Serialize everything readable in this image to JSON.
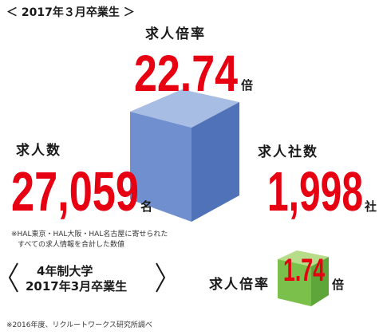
{
  "header": {
    "title": "＜ 2017年３月卒業生 ＞"
  },
  "main": {
    "ratio": {
      "label": "求人倍率",
      "value": "22.74",
      "unit": "倍"
    },
    "applicants": {
      "label": "求人数",
      "value": "27,059",
      "unit": "名"
    },
    "companies": {
      "label": "求人社数",
      "value": "1,998",
      "unit": "社"
    }
  },
  "note": [
    "※HAL東京・HAL大阪・HAL名古屋に寄せられた",
    "すべての求人情報を合計した数値"
  ],
  "comparison": {
    "title": [
      "4年制大学",
      "2017年3月卒業生"
    ],
    "ratio": {
      "label": "求人倍率",
      "value": "1.74",
      "unit": "倍"
    }
  },
  "source": "※2016年度、リクルートワークス研究所調べ"
}
